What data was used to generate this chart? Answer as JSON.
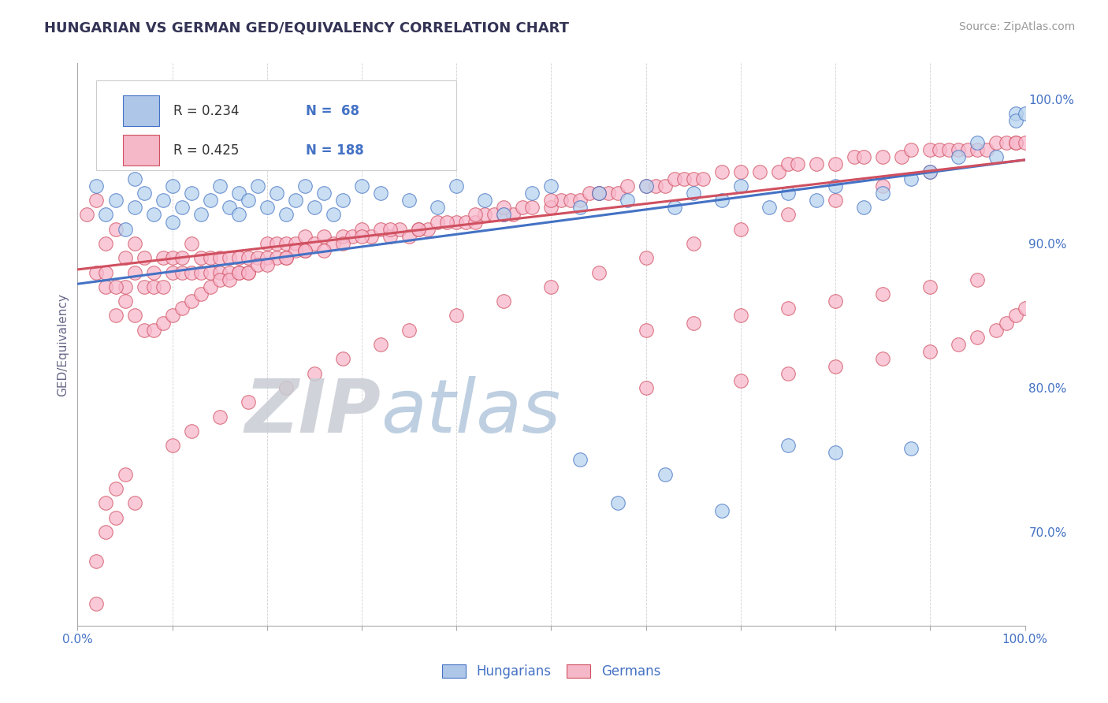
{
  "title": "HUNGARIAN VS GERMAN GED/EQUIVALENCY CORRELATION CHART",
  "source_text": "Source: ZipAtlas.com",
  "ylabel": "GED/Equivalency",
  "background_color": "#ffffff",
  "plot_bg_color": "#ffffff",
  "grid_color": "#cccccc",
  "xlim": [
    0.0,
    1.0
  ],
  "ylim": [
    0.635,
    1.025
  ],
  "y_tick_labels_right": [
    "70.0%",
    "80.0%",
    "90.0%",
    "100.0%"
  ],
  "y_tick_values_right": [
    0.7,
    0.8,
    0.9,
    1.0
  ],
  "legend_color1": "#aec6e8",
  "legend_color2": "#f4b8c8",
  "scatter_color_hung": "#b8d4ee",
  "scatter_color_germ": "#f8b8cc",
  "line_color_hung": "#4472c4",
  "line_color_germ": "#d05060",
  "hung_label": "Hungarians",
  "germ_label": "Germans",
  "title_color": "#333355",
  "axis_label_color": "#666688",
  "tick_label_color": "#4472c4",
  "hung_trend_y_start": 0.872,
  "hung_trend_y_end": 0.958,
  "germ_trend_y_start": 0.882,
  "germ_trend_y_end": 0.958,
  "hung_scatter_x": [
    0.02,
    0.03,
    0.04,
    0.05,
    0.06,
    0.06,
    0.07,
    0.08,
    0.09,
    0.1,
    0.1,
    0.11,
    0.12,
    0.13,
    0.14,
    0.15,
    0.16,
    0.17,
    0.17,
    0.18,
    0.19,
    0.2,
    0.21,
    0.22,
    0.23,
    0.24,
    0.25,
    0.26,
    0.27,
    0.28,
    0.3,
    0.32,
    0.35,
    0.38,
    0.4,
    0.43,
    0.45,
    0.48,
    0.5,
    0.53,
    0.55,
    0.58,
    0.6,
    0.63,
    0.65,
    0.68,
    0.7,
    0.73,
    0.75,
    0.78,
    0.8,
    0.83,
    0.85,
    0.88,
    0.9,
    0.53,
    0.62,
    0.75,
    0.8,
    0.88,
    0.93,
    0.95,
    0.97,
    0.99,
    0.99,
    1.0,
    0.57,
    0.68
  ],
  "hung_scatter_y": [
    0.94,
    0.92,
    0.93,
    0.91,
    0.945,
    0.925,
    0.935,
    0.92,
    0.93,
    0.915,
    0.94,
    0.925,
    0.935,
    0.92,
    0.93,
    0.94,
    0.925,
    0.935,
    0.92,
    0.93,
    0.94,
    0.925,
    0.935,
    0.92,
    0.93,
    0.94,
    0.925,
    0.935,
    0.92,
    0.93,
    0.94,
    0.935,
    0.93,
    0.925,
    0.94,
    0.93,
    0.92,
    0.935,
    0.94,
    0.925,
    0.935,
    0.93,
    0.94,
    0.925,
    0.935,
    0.93,
    0.94,
    0.925,
    0.935,
    0.93,
    0.94,
    0.925,
    0.935,
    0.945,
    0.95,
    0.75,
    0.74,
    0.76,
    0.755,
    0.758,
    0.96,
    0.97,
    0.96,
    0.99,
    0.985,
    0.99,
    0.72,
    0.715
  ],
  "germ_scatter_x": [
    0.01,
    0.02,
    0.02,
    0.03,
    0.03,
    0.04,
    0.04,
    0.05,
    0.05,
    0.06,
    0.06,
    0.07,
    0.07,
    0.08,
    0.08,
    0.09,
    0.09,
    0.1,
    0.1,
    0.11,
    0.11,
    0.12,
    0.12,
    0.13,
    0.13,
    0.14,
    0.14,
    0.15,
    0.15,
    0.16,
    0.16,
    0.17,
    0.17,
    0.18,
    0.18,
    0.19,
    0.2,
    0.2,
    0.21,
    0.21,
    0.22,
    0.22,
    0.23,
    0.23,
    0.24,
    0.24,
    0.25,
    0.26,
    0.27,
    0.28,
    0.29,
    0.3,
    0.31,
    0.32,
    0.33,
    0.34,
    0.35,
    0.36,
    0.37,
    0.38,
    0.4,
    0.41,
    0.42,
    0.43,
    0.44,
    0.45,
    0.46,
    0.47,
    0.48,
    0.5,
    0.51,
    0.52,
    0.53,
    0.54,
    0.55,
    0.56,
    0.57,
    0.58,
    0.6,
    0.61,
    0.62,
    0.63,
    0.64,
    0.65,
    0.66,
    0.68,
    0.7,
    0.72,
    0.74,
    0.75,
    0.76,
    0.78,
    0.8,
    0.82,
    0.83,
    0.85,
    0.87,
    0.88,
    0.9,
    0.91,
    0.92,
    0.93,
    0.94,
    0.95,
    0.96,
    0.97,
    0.98,
    0.99,
    0.99,
    1.0,
    0.03,
    0.04,
    0.05,
    0.06,
    0.07,
    0.08,
    0.09,
    0.1,
    0.11,
    0.12,
    0.13,
    0.14,
    0.15,
    0.16,
    0.17,
    0.18,
    0.19,
    0.2,
    0.22,
    0.24,
    0.26,
    0.28,
    0.3,
    0.33,
    0.36,
    0.39,
    0.42,
    0.45,
    0.5,
    0.55,
    0.6,
    0.65,
    0.7,
    0.75,
    0.8,
    0.85,
    0.9,
    0.95,
    0.6,
    0.7,
    0.75,
    0.8,
    0.85,
    0.9,
    0.93,
    0.95,
    0.97,
    0.98,
    0.99,
    1.0,
    0.02,
    0.02,
    0.03,
    0.03,
    0.04,
    0.04,
    0.05,
    0.06,
    0.1,
    0.12,
    0.15,
    0.18,
    0.22,
    0.25,
    0.28,
    0.32,
    0.35,
    0.4,
    0.45,
    0.5,
    0.55,
    0.6,
    0.65,
    0.7,
    0.75,
    0.8,
    0.85,
    0.9
  ],
  "germ_scatter_y": [
    0.92,
    0.93,
    0.88,
    0.9,
    0.87,
    0.91,
    0.85,
    0.89,
    0.87,
    0.9,
    0.88,
    0.87,
    0.89,
    0.88,
    0.87,
    0.89,
    0.87,
    0.89,
    0.88,
    0.89,
    0.88,
    0.9,
    0.88,
    0.89,
    0.88,
    0.89,
    0.88,
    0.89,
    0.88,
    0.89,
    0.88,
    0.89,
    0.88,
    0.89,
    0.88,
    0.89,
    0.89,
    0.9,
    0.89,
    0.9,
    0.89,
    0.9,
    0.9,
    0.895,
    0.895,
    0.905,
    0.9,
    0.905,
    0.9,
    0.905,
    0.905,
    0.91,
    0.905,
    0.91,
    0.905,
    0.91,
    0.905,
    0.91,
    0.91,
    0.915,
    0.915,
    0.915,
    0.915,
    0.92,
    0.92,
    0.92,
    0.92,
    0.925,
    0.925,
    0.925,
    0.93,
    0.93,
    0.93,
    0.935,
    0.935,
    0.935,
    0.935,
    0.94,
    0.94,
    0.94,
    0.94,
    0.945,
    0.945,
    0.945,
    0.945,
    0.95,
    0.95,
    0.95,
    0.95,
    0.955,
    0.955,
    0.955,
    0.955,
    0.96,
    0.96,
    0.96,
    0.96,
    0.965,
    0.965,
    0.965,
    0.965,
    0.965,
    0.965,
    0.965,
    0.965,
    0.97,
    0.97,
    0.97,
    0.97,
    0.97,
    0.88,
    0.87,
    0.86,
    0.85,
    0.84,
    0.84,
    0.845,
    0.85,
    0.855,
    0.86,
    0.865,
    0.87,
    0.875,
    0.875,
    0.88,
    0.88,
    0.885,
    0.885,
    0.89,
    0.895,
    0.895,
    0.9,
    0.905,
    0.91,
    0.91,
    0.915,
    0.92,
    0.925,
    0.93,
    0.935,
    0.84,
    0.845,
    0.85,
    0.855,
    0.86,
    0.865,
    0.87,
    0.875,
    0.8,
    0.805,
    0.81,
    0.815,
    0.82,
    0.825,
    0.83,
    0.835,
    0.84,
    0.845,
    0.85,
    0.855,
    0.68,
    0.65,
    0.72,
    0.7,
    0.73,
    0.71,
    0.74,
    0.72,
    0.76,
    0.77,
    0.78,
    0.79,
    0.8,
    0.81,
    0.82,
    0.83,
    0.84,
    0.85,
    0.86,
    0.87,
    0.88,
    0.89,
    0.9,
    0.91,
    0.92,
    0.93,
    0.94,
    0.95
  ]
}
